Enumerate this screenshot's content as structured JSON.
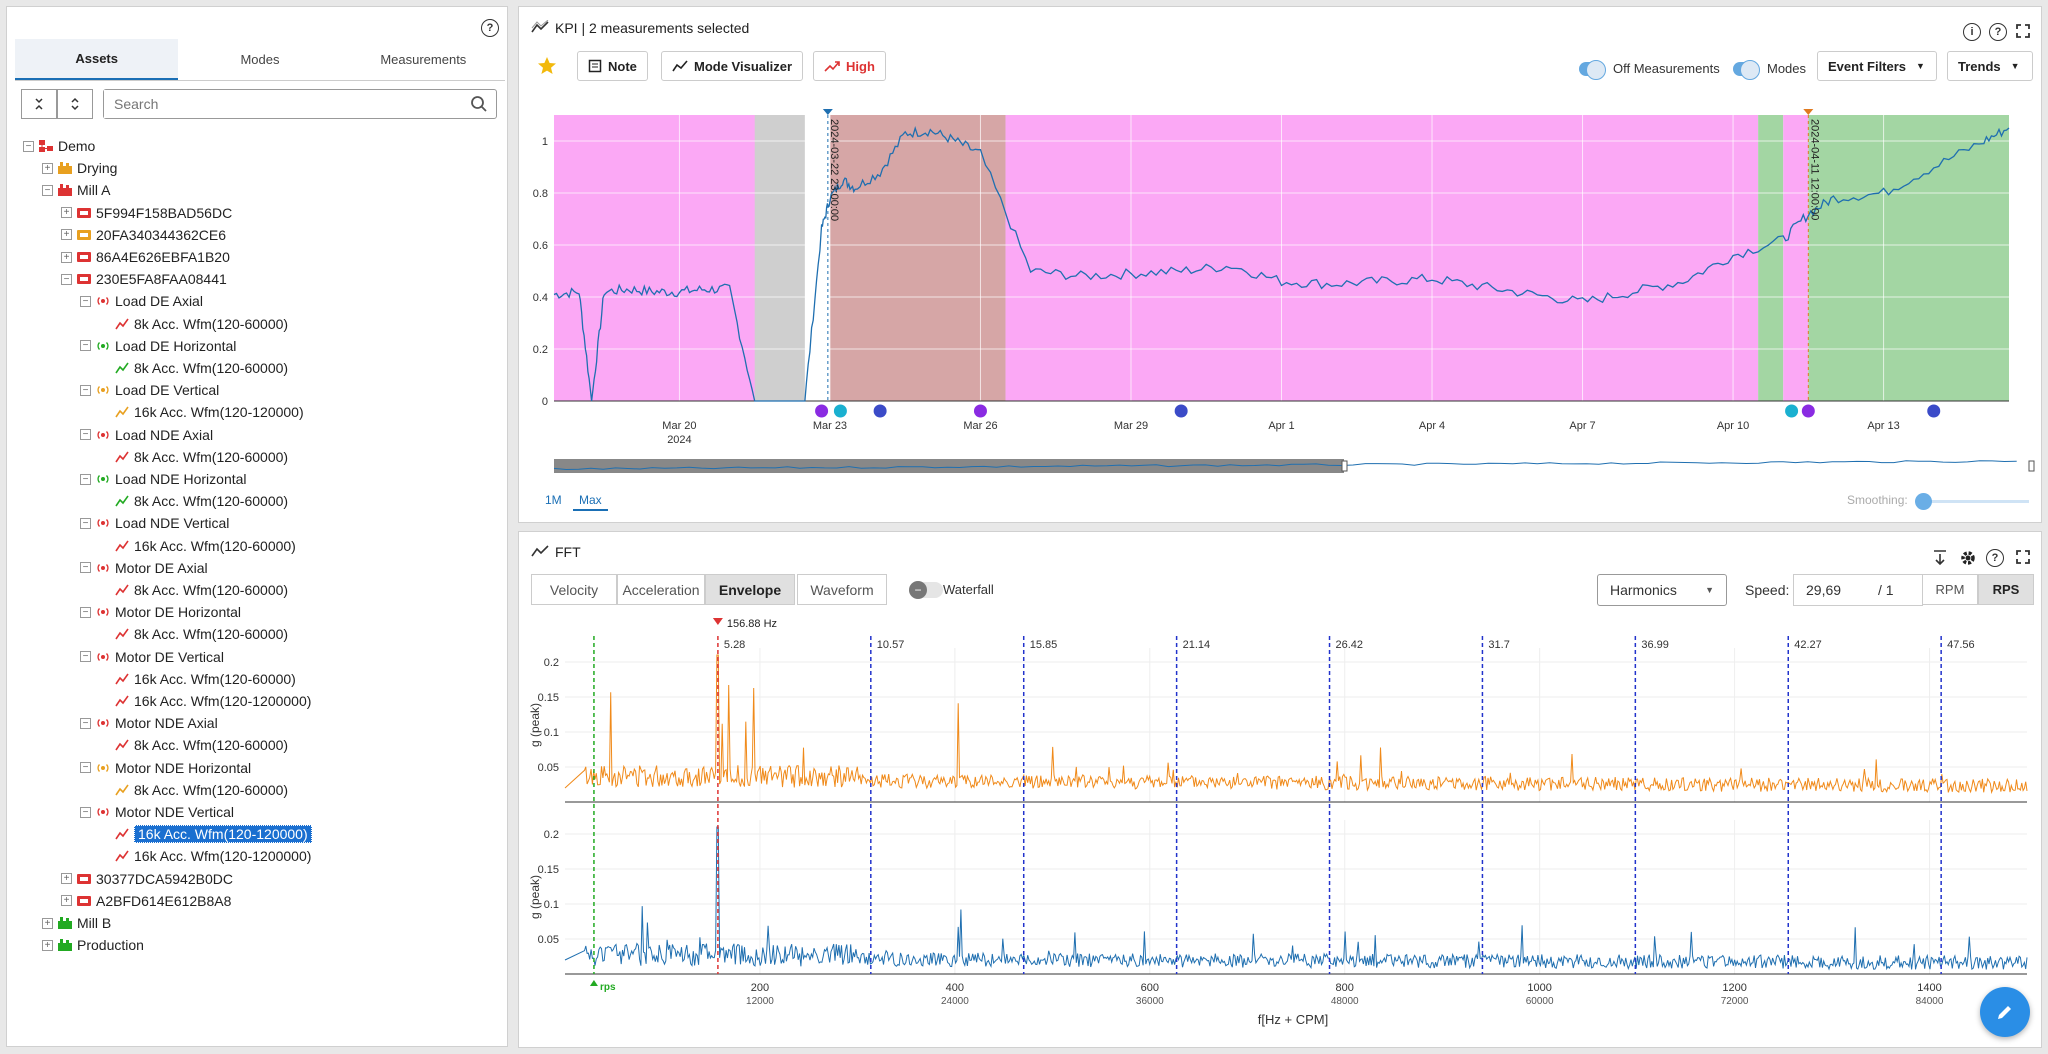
{
  "left": {
    "tabs": [
      "Assets",
      "Modes",
      "Measurements"
    ],
    "search_placeholder": "Search",
    "tree": [
      {
        "label": "Demo",
        "lvl": 0,
        "tog": "−",
        "ico": "factory",
        "c": "#d33"
      },
      {
        "label": "Drying",
        "lvl": 1,
        "tog": "+",
        "ico": "machine",
        "c": "#e8a020"
      },
      {
        "label": "Mill A",
        "lvl": 1,
        "tog": "−",
        "ico": "machine",
        "c": "#d33"
      },
      {
        "label": "5F994F158BAD56DC",
        "lvl": 2,
        "tog": "+",
        "ico": "asset",
        "c": "#d33"
      },
      {
        "label": "20FA340344362CE6",
        "lvl": 2,
        "tog": "+",
        "ico": "asset",
        "c": "#e8a020"
      },
      {
        "label": "86A4E626EBFA1B20",
        "lvl": 2,
        "tog": "+",
        "ico": "asset",
        "c": "#d33"
      },
      {
        "label": "230E5FA8FAA08441",
        "lvl": 2,
        "tog": "−",
        "ico": "asset",
        "c": "#d33"
      },
      {
        "label": "Load DE Axial",
        "lvl": 3,
        "tog": "−",
        "ico": "sensor",
        "c": "#d33"
      },
      {
        "label": "8k Acc. Wfm(120-60000)",
        "lvl": 4,
        "ico": "wave",
        "c": "#d33"
      },
      {
        "label": "Load DE Horizontal",
        "lvl": 3,
        "tog": "−",
        "ico": "sensor",
        "c": "#2a2"
      },
      {
        "label": "8k Acc. Wfm(120-60000)",
        "lvl": 4,
        "ico": "wave",
        "c": "#2a2"
      },
      {
        "label": "Load DE Vertical",
        "lvl": 3,
        "tog": "−",
        "ico": "sensor",
        "c": "#e8a020"
      },
      {
        "label": "16k Acc. Wfm(120-120000)",
        "lvl": 4,
        "ico": "wave",
        "c": "#e8a020"
      },
      {
        "label": "Load NDE Axial",
        "lvl": 3,
        "tog": "−",
        "ico": "sensor",
        "c": "#d33"
      },
      {
        "label": "8k Acc. Wfm(120-60000)",
        "lvl": 4,
        "ico": "wave",
        "c": "#d33"
      },
      {
        "label": "Load NDE Horizontal",
        "lvl": 3,
        "tog": "−",
        "ico": "sensor",
        "c": "#2a2"
      },
      {
        "label": "8k Acc. Wfm(120-60000)",
        "lvl": 4,
        "ico": "wave",
        "c": "#2a2"
      },
      {
        "label": "Load NDE Vertical",
        "lvl": 3,
        "tog": "−",
        "ico": "sensor",
        "c": "#d33"
      },
      {
        "label": "16k Acc. Wfm(120-60000)",
        "lvl": 4,
        "ico": "wave",
        "c": "#d33"
      },
      {
        "label": "Motor DE Axial",
        "lvl": 3,
        "tog": "−",
        "ico": "sensor",
        "c": "#d33"
      },
      {
        "label": "8k Acc. Wfm(120-60000)",
        "lvl": 4,
        "ico": "wave",
        "c": "#d33"
      },
      {
        "label": "Motor DE Horizontal",
        "lvl": 3,
        "tog": "−",
        "ico": "sensor",
        "c": "#d33"
      },
      {
        "label": "8k Acc. Wfm(120-60000)",
        "lvl": 4,
        "ico": "wave",
        "c": "#d33"
      },
      {
        "label": "Motor DE Vertical",
        "lvl": 3,
        "tog": "−",
        "ico": "sensor",
        "c": "#d33"
      },
      {
        "label": "16k Acc. Wfm(120-60000)",
        "lvl": 4,
        "ico": "wave",
        "c": "#d33"
      },
      {
        "label": "16k Acc. Wfm(120-1200000)",
        "lvl": 4,
        "ico": "wave",
        "c": "#d33"
      },
      {
        "label": "Motor NDE Axial",
        "lvl": 3,
        "tog": "−",
        "ico": "sensor",
        "c": "#d33"
      },
      {
        "label": "8k Acc. Wfm(120-60000)",
        "lvl": 4,
        "ico": "wave",
        "c": "#d33"
      },
      {
        "label": "Motor NDE Horizontal",
        "lvl": 3,
        "tog": "−",
        "ico": "sensor",
        "c": "#e8a020"
      },
      {
        "label": "8k Acc. Wfm(120-60000)",
        "lvl": 4,
        "ico": "wave",
        "c": "#e8a020"
      },
      {
        "label": "Motor NDE Vertical",
        "lvl": 3,
        "tog": "−",
        "ico": "sensor",
        "c": "#d33"
      },
      {
        "label": "16k Acc. Wfm(120-120000)",
        "lvl": 4,
        "ico": "wave",
        "c": "#d33",
        "selected": true
      },
      {
        "label": "16k Acc. Wfm(120-1200000)",
        "lvl": 4,
        "ico": "wave",
        "c": "#d33"
      },
      {
        "label": "30377DCA5942B0DC",
        "lvl": 2,
        "tog": "+",
        "ico": "asset",
        "c": "#d33"
      },
      {
        "label": "A2BFD614E612B8A8",
        "lvl": 2,
        "tog": "+",
        "ico": "asset",
        "c": "#d33"
      },
      {
        "label": "Mill B",
        "lvl": 1,
        "tog": "+",
        "ico": "machine",
        "c": "#2a2"
      },
      {
        "label": "Production",
        "lvl": 1,
        "tog": "+",
        "ico": "machine",
        "c": "#2a2"
      }
    ]
  },
  "kpi": {
    "title": "KPI | 2 measurements selected",
    "note": "Note",
    "mode_visualizer": "Mode Visualizer",
    "high": "High",
    "off_measurements": "Off Measurements",
    "modes": "Modes",
    "event_filters": "Event Filters",
    "trends": "Trends",
    "range_1m": "1M",
    "range_max": "Max",
    "smoothing": "Smoothing:",
    "cursor1": "2024-03-22 23:00:00",
    "cursor2": "2024-04-11 12:00:00",
    "star_color": "#f2b90c"
  },
  "chart_data": [
    {
      "type": "line",
      "title": "",
      "x_ticks": [
        "Mar 20",
        "Mar 23",
        "Mar 26",
        "Mar 29",
        "Apr 1",
        "Apr 4",
        "Apr 7",
        "Apr 10",
        "Apr 13"
      ],
      "x_tick_sub": "2024",
      "ylim": [
        0,
        1.1
      ],
      "y_ticks": [
        0,
        0.2,
        0.4,
        0.6,
        0.8,
        1
      ],
      "x": [
        "2024-03-17T12:00",
        "2024-03-18T00:00",
        "2024-03-18T06:00",
        "2024-03-18T12:00",
        "2024-03-19T00:00",
        "2024-03-19T12:00",
        "2024-03-20T00:00",
        "2024-03-20T12:00",
        "2024-03-21T00:00",
        "2024-03-21T12:00",
        "2024-03-22T00:00",
        "2024-03-22T12:00",
        "2024-03-22T20:00",
        "2024-03-23T00:00",
        "2024-03-23T06:00",
        "2024-03-23T12:00",
        "2024-03-24T00:00",
        "2024-03-24T12:00",
        "2024-03-25T00:00",
        "2024-03-25T12:00",
        "2024-03-26T00:00",
        "2024-03-27T00:00",
        "2024-03-28T00:00",
        "2024-03-29T00:00",
        "2024-03-30T00:00",
        "2024-03-31T00:00",
        "2024-04-01T00:00",
        "2024-04-02T00:00",
        "2024-04-03T00:00",
        "2024-04-04T00:00",
        "2024-04-05T00:00",
        "2024-04-06T00:00",
        "2024-04-07T00:00",
        "2024-04-08T00:00",
        "2024-04-09T00:00",
        "2024-04-10T00:00",
        "2024-04-11T00:00",
        "2024-04-11T12:00",
        "2024-04-12T00:00",
        "2024-04-13T00:00",
        "2024-04-14T00:00",
        "2024-04-15T00:00",
        "2024-04-15T12:00"
      ],
      "y": [
        0.41,
        0.42,
        0.0,
        0.42,
        0.43,
        0.42,
        0.42,
        0.43,
        0.43,
        0.0,
        0.0,
        0.0,
        0.66,
        0.78,
        0.85,
        0.82,
        0.88,
        1.03,
        1.04,
        1.0,
        0.95,
        0.5,
        0.48,
        0.49,
        0.5,
        0.52,
        0.46,
        0.45,
        0.46,
        0.47,
        0.44,
        0.41,
        0.38,
        0.42,
        0.46,
        0.56,
        0.62,
        0.72,
        0.78,
        0.8,
        0.9,
        1.0,
        1.05
      ],
      "bands": [
        {
          "from": "2024-03-17T12:00",
          "to": "2024-03-22T06:00",
          "color": "#fba8f5"
        },
        {
          "from": "2024-03-21T12:00",
          "to": "2024-03-22T12:00",
          "color": "#cfcfcf"
        },
        {
          "from": "2024-03-23T00:00",
          "to": "2024-03-26T12:00",
          "color": "#d6a6a6"
        },
        {
          "from": "2024-03-26T12:00",
          "to": "2024-04-10T12:00",
          "color": "#fba8f5"
        },
        {
          "from": "2024-04-10T12:00",
          "to": "2024-04-11T00:00",
          "color": "#a3d6a3"
        },
        {
          "from": "2024-04-11T00:00",
          "to": "2024-04-11T12:00",
          "color": "#fba8f5"
        },
        {
          "from": "2024-04-11T12:00",
          "to": "2024-04-15T12:00",
          "color": "#a3d6a3"
        }
      ],
      "series_color": "#1f6fb0"
    },
    {
      "type": "line",
      "title": "",
      "ylabel": "g (peak)",
      "xlabel": "f[Hz + CPM]",
      "x_ticks": [
        "200",
        "400",
        "600",
        "800",
        "1000",
        "1200",
        "1400"
      ],
      "x_ticks_cpm": [
        "12000",
        "24000",
        "36000",
        "48000",
        "60000",
        "72000",
        "84000"
      ],
      "xlim": [
        0,
        1500
      ],
      "y_ticks": [
        "0.05",
        "0.1",
        "0.15",
        "0.2"
      ],
      "ylim": [
        0,
        0.22
      ],
      "harmonics": [
        "5.28",
        "10.57",
        "15.85",
        "21.14",
        "26.42",
        "31.7",
        "36.99",
        "42.27",
        "47.56"
      ],
      "marker_label": "156.88 Hz",
      "marker_freq": 156.88,
      "rps_label": "rps",
      "series": [
        {
          "color": "#f08a1a"
        },
        {
          "color": "#1f6fb0"
        }
      ]
    }
  ],
  "fft": {
    "title": "FFT",
    "tabs": [
      "Velocity",
      "Acceleration",
      "Envelope",
      "Waveform"
    ],
    "active_tab": "Envelope",
    "waterfall": "Waterfall",
    "harmonics_select": "Harmonics",
    "speed_label": "Speed:",
    "speed_value": "29,69",
    "speed_div": "/ 1",
    "rpm": "RPM",
    "rps": "RPS"
  }
}
